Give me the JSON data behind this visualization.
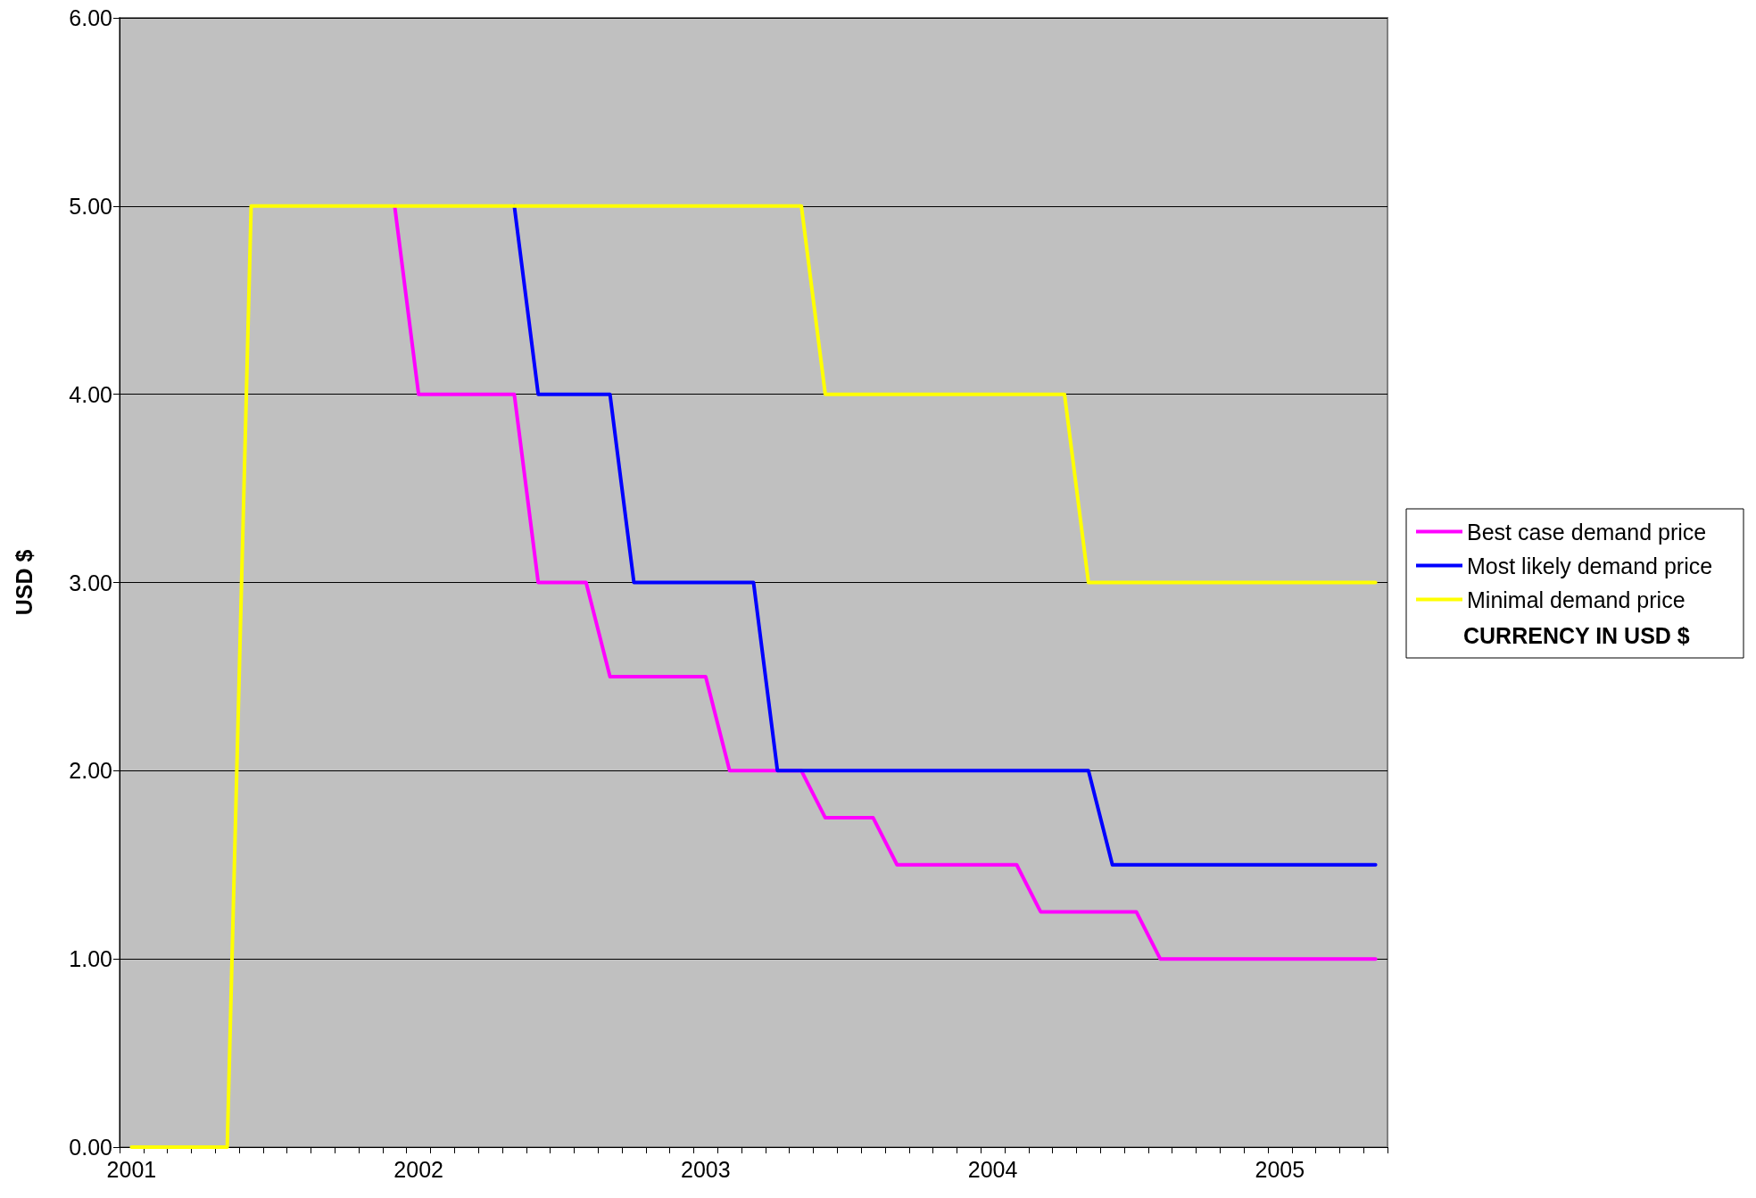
{
  "chart_data": {
    "type": "line",
    "ylabel": "USD $",
    "annotations": [
      "CURRENCY IN USD $"
    ],
    "categories": [
      "2001",
      null,
      null,
      null,
      null,
      null,
      null,
      null,
      null,
      null,
      null,
      null,
      "2002",
      null,
      null,
      null,
      null,
      null,
      null,
      null,
      null,
      null,
      null,
      null,
      "2003",
      null,
      null,
      null,
      null,
      null,
      null,
      null,
      null,
      null,
      null,
      null,
      "2004",
      null,
      null,
      null,
      null,
      null,
      null,
      null,
      null,
      null,
      null,
      null,
      "2005",
      null,
      null,
      null,
      null
    ],
    "series": [
      {
        "name": "Best case demand price",
        "color": "#ff00ff",
        "values": [
          null,
          null,
          null,
          null,
          null,
          null,
          null,
          null,
          null,
          null,
          null,
          5,
          4,
          4,
          4,
          4,
          4,
          3,
          3,
          3,
          2.5,
          2.5,
          2.5,
          2.5,
          2.5,
          2,
          2,
          2,
          2,
          1.75,
          1.75,
          1.75,
          1.5,
          1.5,
          1.5,
          1.5,
          1.5,
          1.5,
          1.25,
          1.25,
          1.25,
          1.25,
          1.25,
          1,
          1,
          1,
          1,
          1,
          1,
          1,
          1,
          1,
          1
        ]
      },
      {
        "name": "Most likely demand price",
        "color": "#0000ff",
        "values": [
          null,
          null,
          null,
          null,
          null,
          null,
          null,
          null,
          null,
          null,
          null,
          null,
          null,
          null,
          null,
          null,
          5,
          4,
          4,
          4,
          4,
          3,
          3,
          3,
          3,
          3,
          3,
          2,
          2,
          2,
          2,
          2,
          2,
          2,
          2,
          2,
          2,
          2,
          2,
          2,
          2,
          1.5,
          1.5,
          1.5,
          1.5,
          1.5,
          1.5,
          1.5,
          1.5,
          1.5,
          1.5,
          1.5,
          1.5
        ]
      },
      {
        "name": "Minimal demand price",
        "color": "#ffff00",
        "values": [
          0,
          0,
          0,
          0,
          0,
          5,
          5,
          5,
          5,
          5,
          5,
          5,
          5,
          5,
          5,
          5,
          5,
          5,
          5,
          5,
          5,
          5,
          5,
          5,
          5,
          5,
          5,
          5,
          5,
          4,
          4,
          4,
          4,
          4,
          4,
          4,
          4,
          4,
          4,
          4,
          3,
          3,
          3,
          3,
          3,
          3,
          3,
          3,
          3,
          3,
          3,
          3,
          3
        ]
      }
    ],
    "ylim": [
      0,
      6
    ],
    "yticks": [
      {
        "value": 0,
        "label": "0.00"
      },
      {
        "value": 1,
        "label": "1.00"
      },
      {
        "value": 2,
        "label": "2.00"
      },
      {
        "value": 3,
        "label": "3.00"
      },
      {
        "value": 4,
        "label": "4.00"
      },
      {
        "value": 5,
        "label": "5.00"
      },
      {
        "value": 6,
        "label": "6.00"
      }
    ],
    "grid": "y",
    "legend": "right",
    "marker": "none",
    "line_style": "solid"
  }
}
